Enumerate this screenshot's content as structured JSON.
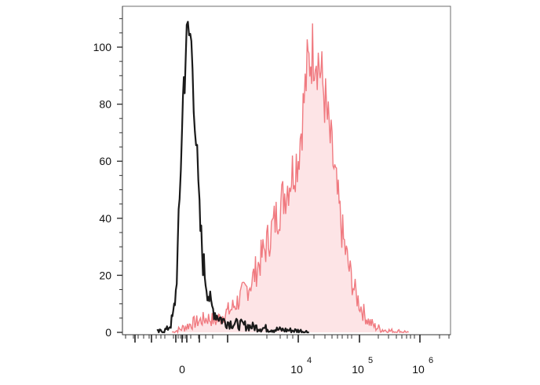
{
  "chart_data": {
    "type": "area",
    "title": "",
    "xlabel": "",
    "ylabel": "",
    "x_scale": "biexponential",
    "y_ticks": [
      "0",
      "20",
      "40",
      "60",
      "80",
      "100"
    ],
    "ylim": [
      0,
      115
    ],
    "x_tick_labels": [
      {
        "base": "0",
        "exp": ""
      },
      {
        "base": "10",
        "exp": "4"
      },
      {
        "base": "10",
        "exp": "5"
      },
      {
        "base": "10",
        "exp": "6"
      }
    ],
    "x_tick_values": [
      0,
      10000,
      100000,
      1000000
    ],
    "grid": false,
    "legend": "none",
    "series": [
      {
        "style": "black outline, unfilled",
        "color": "#1a1a1a",
        "x": [
          -2000,
          -1200,
          -900,
          -700,
          -500,
          -350,
          -200,
          -100,
          0,
          150,
          300,
          500,
          700,
          900,
          1100,
          1300,
          1500,
          1800,
          2100,
          2500,
          3000,
          3600,
          4500,
          6000,
          8000,
          11000,
          15000
        ],
        "y": [
          0,
          1,
          3,
          6,
          14,
          28,
          45,
          60,
          75,
          88,
          97,
          103,
          104,
          95,
          78,
          58,
          40,
          25,
          17,
          9,
          6,
          4,
          3,
          2,
          1,
          0.5,
          0
        ]
      },
      {
        "style": "red outline, light pink fill",
        "color": "#f07a80",
        "fill": "#fde4e6",
        "x": [
          -800,
          -200,
          300,
          800,
          1500,
          2200,
          2900,
          3500,
          4200,
          5000,
          6000,
          7200,
          8500,
          10000,
          12000,
          14000,
          16500,
          19000,
          22000,
          26000,
          31000,
          37000,
          45000,
          55000,
          68000,
          85000,
          110000,
          140000,
          180000,
          240000,
          320000,
          450000,
          650000
        ],
        "y": [
          0,
          1,
          2,
          3,
          4,
          5,
          4,
          6,
          8,
          12,
          18,
          30,
          45,
          62,
          78,
          92,
          98,
          100,
          94,
          85,
          72,
          60,
          45,
          32,
          22,
          14,
          8,
          4,
          2,
          1,
          0.5,
          0.3,
          0
        ]
      }
    ]
  }
}
